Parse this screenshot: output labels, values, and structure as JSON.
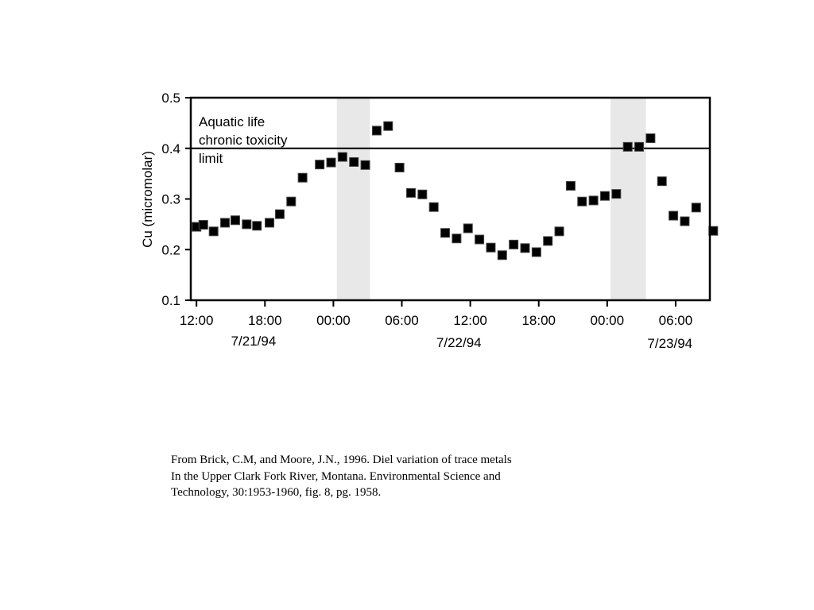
{
  "chart_data": {
    "type": "scatter",
    "title": "",
    "xlabel": "",
    "ylabel": "Cu (micromolar)",
    "ylim": [
      0.1,
      0.5
    ],
    "xlim_hours": [
      11.5,
      57.0
    ],
    "y_ticks": [
      {
        "value": 0.1,
        "label": "0.1"
      },
      {
        "value": 0.2,
        "label": "0.2"
      },
      {
        "value": 0.3,
        "label": "0.3"
      },
      {
        "value": 0.4,
        "label": "0.4"
      },
      {
        "value": 0.5,
        "label": "0.5"
      }
    ],
    "x_ticks": [
      {
        "hour": 12,
        "label": "12:00"
      },
      {
        "hour": 18,
        "label": "18:00"
      },
      {
        "hour": 24,
        "label": "00:00"
      },
      {
        "hour": 30,
        "label": "06:00"
      },
      {
        "hour": 36,
        "label": "12:00"
      },
      {
        "hour": 42,
        "label": "18:00"
      },
      {
        "hour": 48,
        "label": "00:00"
      },
      {
        "hour": 54,
        "label": "06:00"
      }
    ],
    "date_labels": [
      {
        "hour": 17,
        "label": "7/21/94"
      },
      {
        "hour": 35,
        "label": "7/22/94"
      },
      {
        "hour": 53.5,
        "label": "7/23/94"
      }
    ],
    "reference_line": {
      "y": 0.4,
      "label_lines": [
        "Aquatic life",
        "chronic toxicity",
        "limit"
      ]
    },
    "shaded_bands": [
      {
        "start_hour": 24.3,
        "end_hour": 27.2
      },
      {
        "start_hour": 48.3,
        "end_hour": 51.4
      }
    ],
    "series": [
      {
        "marker_color": "#000000",
        "points": [
          {
            "x": 12.0,
            "y": 0.245
          },
          {
            "x": 12.6,
            "y": 0.249
          },
          {
            "x": 13.5,
            "y": 0.236
          },
          {
            "x": 14.5,
            "y": 0.253
          },
          {
            "x": 15.4,
            "y": 0.258
          },
          {
            "x": 16.4,
            "y": 0.25
          },
          {
            "x": 17.3,
            "y": 0.247
          },
          {
            "x": 18.4,
            "y": 0.253
          },
          {
            "x": 19.3,
            "y": 0.27
          },
          {
            "x": 20.3,
            "y": 0.295
          },
          {
            "x": 21.3,
            "y": 0.342
          },
          {
            "x": 22.8,
            "y": 0.368
          },
          {
            "x": 23.8,
            "y": 0.372
          },
          {
            "x": 24.8,
            "y": 0.383
          },
          {
            "x": 25.8,
            "y": 0.373
          },
          {
            "x": 26.8,
            "y": 0.367
          },
          {
            "x": 27.8,
            "y": 0.435
          },
          {
            "x": 28.8,
            "y": 0.444
          },
          {
            "x": 29.8,
            "y": 0.362
          },
          {
            "x": 30.8,
            "y": 0.312
          },
          {
            "x": 31.8,
            "y": 0.309
          },
          {
            "x": 32.8,
            "y": 0.284
          },
          {
            "x": 33.8,
            "y": 0.233
          },
          {
            "x": 34.8,
            "y": 0.222
          },
          {
            "x": 35.8,
            "y": 0.242
          },
          {
            "x": 36.8,
            "y": 0.22
          },
          {
            "x": 37.8,
            "y": 0.204
          },
          {
            "x": 38.8,
            "y": 0.189
          },
          {
            "x": 39.8,
            "y": 0.21
          },
          {
            "x": 40.8,
            "y": 0.203
          },
          {
            "x": 41.8,
            "y": 0.195
          },
          {
            "x": 42.8,
            "y": 0.217
          },
          {
            "x": 43.8,
            "y": 0.236
          },
          {
            "x": 44.8,
            "y": 0.326
          },
          {
            "x": 45.8,
            "y": 0.295
          },
          {
            "x": 46.8,
            "y": 0.297
          },
          {
            "x": 47.8,
            "y": 0.306
          },
          {
            "x": 48.8,
            "y": 0.31
          },
          {
            "x": 49.8,
            "y": 0.403
          },
          {
            "x": 50.8,
            "y": 0.403
          },
          {
            "x": 51.8,
            "y": 0.42
          },
          {
            "x": 52.8,
            "y": 0.335
          },
          {
            "x": 53.8,
            "y": 0.267
          },
          {
            "x": 54.8,
            "y": 0.256
          },
          {
            "x": 55.8,
            "y": 0.283
          },
          {
            "x": 57.3,
            "y": 0.237
          }
        ]
      }
    ]
  },
  "citation": {
    "line1": "From Brick, C.M, and Moore, J.N., 1996. Diel variation of trace metals",
    "line2": "In the Upper Clark Fork River, Montana. Environmental Science and",
    "line3": "Technology, 30:1953-1960, fig. 8, pg. 1958."
  }
}
